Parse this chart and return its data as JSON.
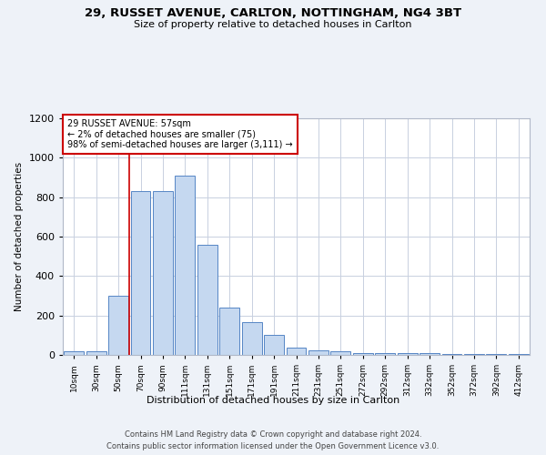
{
  "title_line1": "29, RUSSET AVENUE, CARLTON, NOTTINGHAM, NG4 3BT",
  "title_line2": "Size of property relative to detached houses in Carlton",
  "xlabel": "Distribution of detached houses by size in Carlton",
  "ylabel": "Number of detached properties",
  "categories": [
    "10sqm",
    "30sqm",
    "50sqm",
    "70sqm",
    "90sqm",
    "111sqm",
    "131sqm",
    "151sqm",
    "171sqm",
    "191sqm",
    "211sqm",
    "231sqm",
    "251sqm",
    "272sqm",
    "292sqm",
    "312sqm",
    "332sqm",
    "352sqm",
    "372sqm",
    "392sqm",
    "412sqm"
  ],
  "values": [
    20,
    20,
    300,
    830,
    830,
    910,
    560,
    240,
    165,
    100,
    35,
    22,
    20,
    10,
    8,
    8,
    8,
    5,
    5,
    5,
    5
  ],
  "bar_color": "#c5d8f0",
  "bar_edge_color": "#5585c5",
  "vline_x_index": 2.5,
  "vline_color": "#cc0000",
  "annotation_text": "29 RUSSET AVENUE: 57sqm\n← 2% of detached houses are smaller (75)\n98% of semi-detached houses are larger (3,111) →",
  "annotation_box_color": "#ffffff",
  "annotation_box_edge_color": "#cc0000",
  "ylim": [
    0,
    1200
  ],
  "yticks": [
    0,
    200,
    400,
    600,
    800,
    1000,
    1200
  ],
  "footer_line1": "Contains HM Land Registry data © Crown copyright and database right 2024.",
  "footer_line2": "Contains public sector information licensed under the Open Government Licence v3.0.",
  "bg_color": "#eef2f8",
  "plot_bg_color": "#ffffff",
  "grid_color": "#c8d0e0"
}
